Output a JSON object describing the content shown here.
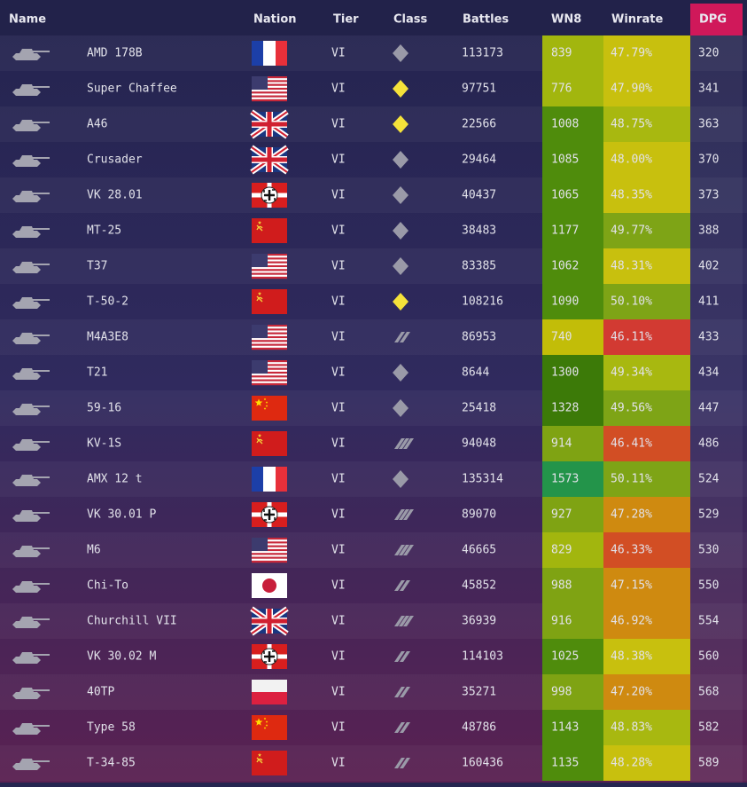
{
  "table": {
    "columns": [
      "Name",
      "Nation",
      "Tier",
      "Class",
      "Battles",
      "WN8",
      "Winrate",
      "DPG"
    ],
    "rows": [
      {
        "name": "AMD 178B",
        "tier": "VI",
        "battles": 113173,
        "wn8": 839,
        "winrate": "47.79%",
        "dpg": 320
      },
      {
        "name": "Super Chaffee",
        "tier": "VI",
        "battles": 97751,
        "wn8": 776,
        "winrate": "47.90%",
        "dpg": 341
      },
      {
        "name": "A46",
        "tier": "VI",
        "battles": 22566,
        "wn8": 1008,
        "winrate": "48.75%",
        "dpg": 363
      },
      {
        "name": "Crusader",
        "tier": "VI",
        "battles": 29464,
        "wn8": 1085,
        "winrate": "48.00%",
        "dpg": 370
      },
      {
        "name": "VK 28.01",
        "tier": "VI",
        "battles": 40437,
        "wn8": 1065,
        "winrate": "48.35%",
        "dpg": 373
      },
      {
        "name": "MT-25",
        "tier": "VI",
        "battles": 38483,
        "wn8": 1177,
        "winrate": "49.77%",
        "dpg": 388
      },
      {
        "name": "T37",
        "tier": "VI",
        "battles": 83385,
        "wn8": 1062,
        "winrate": "48.31%",
        "dpg": 402
      },
      {
        "name": "T-50-2",
        "tier": "VI",
        "battles": 108216,
        "wn8": 1090,
        "winrate": "50.10%",
        "dpg": 411
      },
      {
        "name": "M4A3E8",
        "tier": "VI",
        "battles": 86953,
        "wn8": 740,
        "winrate": "46.11%",
        "dpg": 433
      },
      {
        "name": "T21",
        "tier": "VI",
        "battles": 8644,
        "wn8": 1300,
        "winrate": "49.34%",
        "dpg": 434
      },
      {
        "name": "59-16",
        "tier": "VI",
        "battles": 25418,
        "wn8": 1328,
        "winrate": "49.56%",
        "dpg": 447
      },
      {
        "name": "KV-1S",
        "tier": "VI",
        "battles": 94048,
        "wn8": 914,
        "winrate": "46.41%",
        "dpg": 486
      },
      {
        "name": "AMX 12 t",
        "tier": "VI",
        "battles": 135314,
        "wn8": 1573,
        "winrate": "50.11%",
        "dpg": 524
      },
      {
        "name": "VK 30.01 P",
        "tier": "VI",
        "battles": 89070,
        "wn8": 927,
        "winrate": "47.28%",
        "dpg": 529
      },
      {
        "name": "M6",
        "tier": "VI",
        "battles": 46665,
        "wn8": 829,
        "winrate": "46.33%",
        "dpg": 530
      },
      {
        "name": "Chi-To",
        "tier": "VI",
        "battles": 45852,
        "wn8": 988,
        "winrate": "47.15%",
        "dpg": 550
      },
      {
        "name": "Churchill VII",
        "tier": "VI",
        "battles": 36939,
        "wn8": 916,
        "winrate": "46.92%",
        "dpg": 554
      },
      {
        "name": "VK 30.02 M",
        "tier": "VI",
        "battles": 114103,
        "wn8": 1025,
        "winrate": "48.38%",
        "dpg": 560
      },
      {
        "name": "40TP",
        "tier": "VI",
        "battles": 35271,
        "wn8": 998,
        "winrate": "47.20%",
        "dpg": 568
      },
      {
        "name": "Type 58",
        "tier": "VI",
        "battles": 48786,
        "wn8": 1143,
        "winrate": "48.83%",
        "dpg": 582
      },
      {
        "name": "T-34-85",
        "tier": "VI",
        "battles": 160436,
        "wn8": 1135,
        "winrate": "48.28%",
        "dpg": 589
      }
    ]
  }
}
